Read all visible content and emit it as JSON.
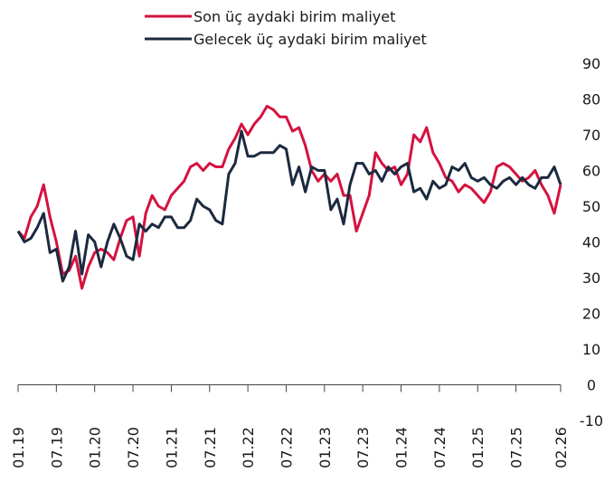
{
  "chart_data": {
    "type": "line",
    "categories": [
      "01.19",
      null,
      null,
      null,
      null,
      null,
      "07.19",
      null,
      null,
      null,
      null,
      null,
      "01.20",
      null,
      null,
      null,
      null,
      null,
      "07.20",
      null,
      null,
      null,
      null,
      null,
      "01.21",
      null,
      null,
      null,
      null,
      null,
      "07.21",
      null,
      null,
      null,
      null,
      null,
      "01.22",
      null,
      null,
      null,
      null,
      null,
      "07.22",
      null,
      null,
      null,
      null,
      null,
      "01.23",
      null,
      null,
      null,
      null,
      null,
      "07.23",
      null,
      null,
      null,
      null,
      null,
      "01.24",
      null,
      null,
      null,
      null,
      null,
      "07.24",
      null,
      null,
      null,
      null,
      null,
      "01.25",
      null,
      null,
      null,
      null,
      null,
      "07.25",
      null,
      null,
      null,
      null,
      null,
      null,
      "02.26"
    ],
    "series": [
      {
        "name": "Son üç aydaki birim maliyet",
        "color": "#d5123f",
        "values": [
          43,
          41,
          47,
          50,
          56,
          47,
          40,
          31,
          32,
          36,
          27,
          33,
          37,
          38,
          37,
          35,
          41,
          46,
          47,
          36,
          48,
          53,
          50,
          49,
          53,
          55,
          57,
          61,
          62,
          60,
          62,
          61,
          61,
          66,
          69,
          73,
          70,
          73,
          75,
          78,
          77,
          75,
          75,
          71,
          72,
          67,
          60,
          57,
          59,
          57,
          59,
          53,
          53,
          43,
          48,
          53,
          65,
          62,
          60,
          61,
          56,
          59,
          70,
          68,
          72,
          65,
          62,
          58,
          57,
          54,
          56,
          55,
          53,
          51,
          54,
          61,
          62,
          61,
          59,
          57,
          58,
          60,
          56,
          53,
          48,
          56
        ]
      },
      {
        "name": "Gelecek üç aydaki birim maliyet",
        "color": "#1c2a40",
        "values": [
          43,
          40,
          41,
          44,
          48,
          37,
          38,
          29,
          33,
          43,
          31,
          42,
          40,
          33,
          40,
          45,
          41,
          36,
          35,
          45,
          43,
          45,
          44,
          47,
          47,
          44,
          44,
          46,
          52,
          50,
          49,
          46,
          45,
          59,
          62,
          71,
          64,
          64,
          65,
          65,
          65,
          67,
          66,
          56,
          61,
          54,
          61,
          60,
          60,
          49,
          52,
          45,
          56,
          62,
          62,
          59,
          60,
          57,
          61,
          59,
          61,
          62,
          54,
          55,
          52,
          57,
          55,
          56,
          61,
          60,
          62,
          58,
          57,
          58,
          56,
          55,
          57,
          58,
          56,
          58,
          56,
          55,
          58,
          58,
          61,
          56
        ]
      }
    ],
    "ylim": [
      -10,
      90
    ],
    "yticks": [
      -10,
      0,
      10,
      20,
      30,
      40,
      50,
      60,
      70,
      80,
      90
    ],
    "grid": false,
    "legend": "top"
  }
}
